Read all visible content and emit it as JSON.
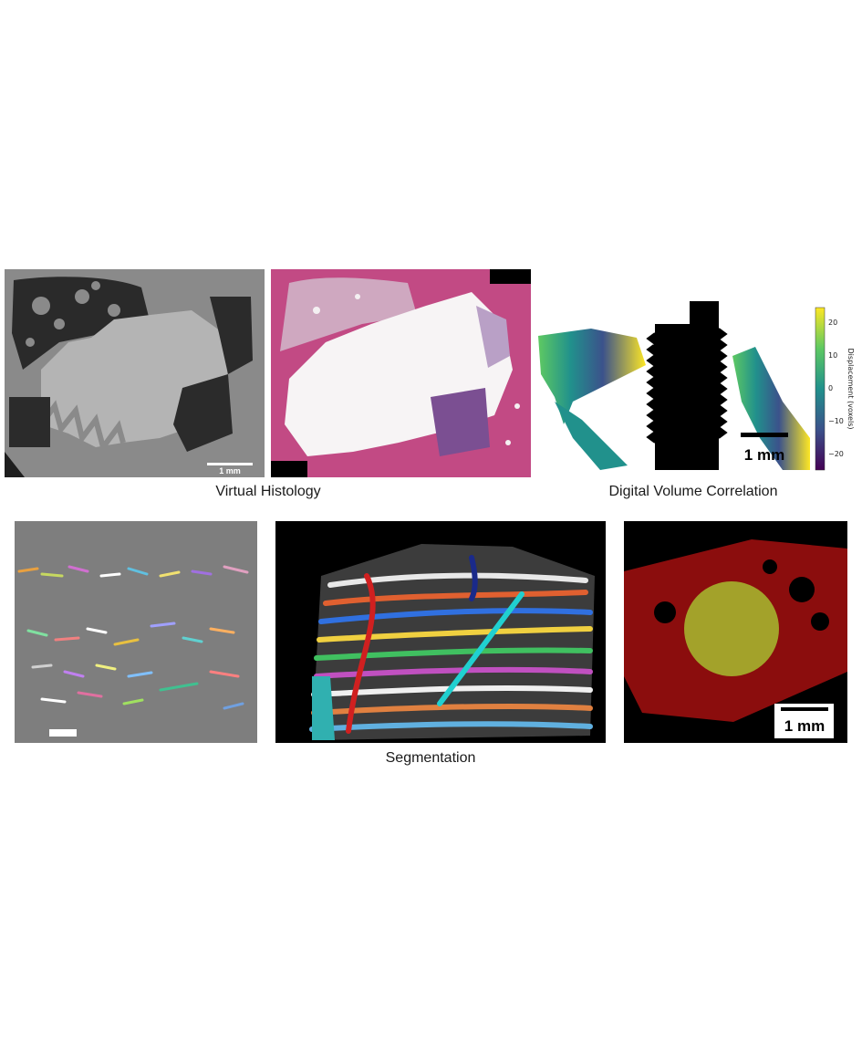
{
  "captions": {
    "virtual_histology": "Virtual Histology",
    "digital_volume_correlation": "Digital Volume Correlation",
    "segmentation": "Segmentation"
  },
  "panels": {
    "ct_slice": {
      "scale_label": "1 mm"
    },
    "dvc_map": {
      "scale_label": "1 mm",
      "colorbar": {
        "label": "Displacement (voxels)",
        "ticks": [
          "20",
          "10",
          "0",
          "−10",
          "−20"
        ],
        "range": [
          -25,
          25
        ]
      }
    },
    "segmentation_implant": {
      "scale_label": "1 mm"
    }
  },
  "colors": {
    "histology_magenta": "#9c1f5e",
    "dvc_viridis": [
      "#440154",
      "#3b528b",
      "#21918c",
      "#5ec962",
      "#fde725"
    ],
    "bone_red": "#8b0d0d",
    "implant_olive": "#a3a22a"
  }
}
